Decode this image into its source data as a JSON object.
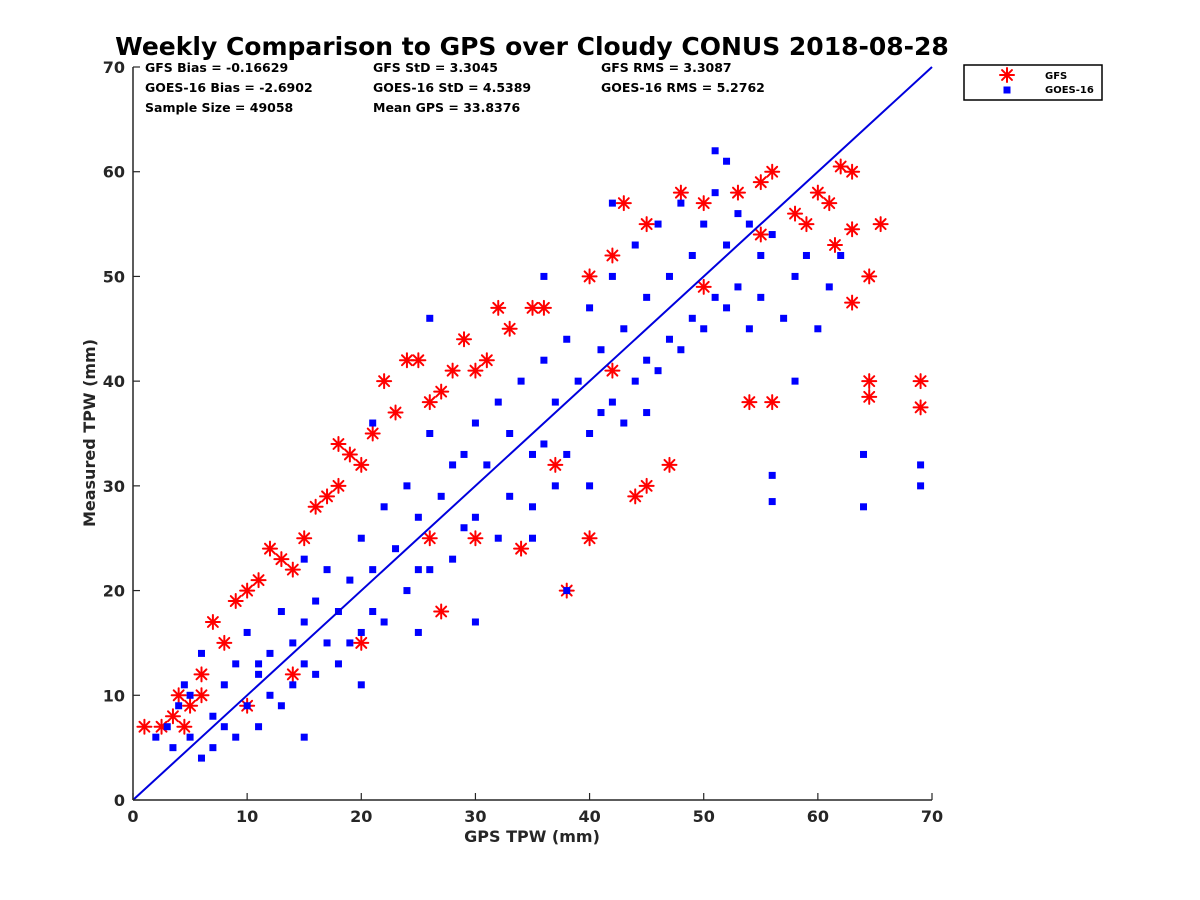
{
  "chart_data": {
    "type": "scatter",
    "title": "Weekly Comparison to GPS over Cloudy CONUS 2018-08-28",
    "xlabel": "GPS TPW (mm)",
    "ylabel": "Measured TPW (mm)",
    "xlim": [
      0,
      70
    ],
    "ylim": [
      0,
      70
    ],
    "xticks": [
      "0",
      "10",
      "20",
      "30",
      "40",
      "50",
      "60",
      "70"
    ],
    "yticks": [
      "0",
      "10",
      "20",
      "30",
      "40",
      "50",
      "60",
      "70"
    ],
    "grid": false,
    "legend_position": "top-right, outside plot",
    "stats": [
      [
        "GFS Bias = -0.16629",
        "GFS StD = 3.3045",
        "GFS RMS = 3.3087"
      ],
      [
        "GOES-16 Bias = -2.6902",
        "GOES-16 StD = 4.5389",
        "GOES-16 RMS = 5.2762"
      ],
      [
        "Sample Size = 49058",
        "Mean GPS = 33.8376",
        ""
      ]
    ],
    "reference_line": {
      "type": "one-to-one",
      "from": [
        0,
        0
      ],
      "to": [
        70,
        70
      ],
      "color": "#0000dd"
    },
    "series": [
      {
        "name": "GOES-16",
        "marker": "square",
        "color": "#0000ff",
        "points": [
          [
            2,
            6
          ],
          [
            3,
            7
          ],
          [
            3.5,
            5
          ],
          [
            4,
            9
          ],
          [
            4.5,
            11
          ],
          [
            5,
            6
          ],
          [
            5,
            10
          ],
          [
            6,
            4
          ],
          [
            6,
            14
          ],
          [
            7,
            8
          ],
          [
            7,
            5
          ],
          [
            8,
            7
          ],
          [
            8,
            11
          ],
          [
            9,
            6
          ],
          [
            9,
            13
          ],
          [
            10,
            9
          ],
          [
            10,
            16
          ],
          [
            11,
            12
          ],
          [
            11,
            7
          ],
          [
            12,
            14
          ],
          [
            12,
            10
          ],
          [
            13,
            18
          ],
          [
            13,
            9
          ],
          [
            14,
            15
          ],
          [
            14,
            11
          ],
          [
            15,
            17
          ],
          [
            15,
            13
          ],
          [
            16,
            19
          ],
          [
            16,
            12
          ],
          [
            17,
            22
          ],
          [
            17,
            15
          ],
          [
            18,
            18
          ],
          [
            18,
            13
          ],
          [
            19,
            21
          ],
          [
            19,
            15
          ],
          [
            20,
            25
          ],
          [
            20,
            16
          ],
          [
            21,
            22
          ],
          [
            21,
            18
          ],
          [
            22,
            28
          ],
          [
            22,
            17
          ],
          [
            23,
            24
          ],
          [
            24,
            30
          ],
          [
            24,
            20
          ],
          [
            25,
            27
          ],
          [
            25,
            22
          ],
          [
            26,
            35
          ],
          [
            26,
            22
          ],
          [
            27,
            29
          ],
          [
            28,
            32
          ],
          [
            28,
            23
          ],
          [
            29,
            33
          ],
          [
            29,
            26
          ],
          [
            30,
            36
          ],
          [
            30,
            27
          ],
          [
            31,
            32
          ],
          [
            32,
            38
          ],
          [
            32,
            25
          ],
          [
            33,
            35
          ],
          [
            33,
            29
          ],
          [
            34,
            40
          ],
          [
            35,
            33
          ],
          [
            35,
            28
          ],
          [
            36,
            42
          ],
          [
            36,
            34
          ],
          [
            37,
            38
          ],
          [
            37,
            30
          ],
          [
            38,
            44
          ],
          [
            38,
            33
          ],
          [
            39,
            40
          ],
          [
            40,
            47
          ],
          [
            40,
            35
          ],
          [
            41,
            43
          ],
          [
            41,
            37
          ],
          [
            42,
            50
          ],
          [
            42,
            38
          ],
          [
            43,
            45
          ],
          [
            43,
            36
          ],
          [
            44,
            53
          ],
          [
            44,
            40
          ],
          [
            45,
            48
          ],
          [
            45,
            42
          ],
          [
            46,
            55
          ],
          [
            46,
            41
          ],
          [
            47,
            50
          ],
          [
            47,
            44
          ],
          [
            48,
            57
          ],
          [
            48,
            43
          ],
          [
            49,
            52
          ],
          [
            49,
            46
          ],
          [
            50,
            55
          ],
          [
            50,
            45
          ],
          [
            51,
            58
          ],
          [
            51,
            48
          ],
          [
            52,
            53
          ],
          [
            52,
            47
          ],
          [
            53,
            56
          ],
          [
            53,
            49
          ],
          [
            54,
            55
          ],
          [
            54,
            45
          ],
          [
            55,
            52
          ],
          [
            55,
            48
          ],
          [
            56,
            54
          ],
          [
            56,
            31
          ],
          [
            56,
            28.5
          ],
          [
            57,
            46
          ],
          [
            58,
            50
          ],
          [
            58,
            40
          ],
          [
            59,
            52
          ],
          [
            60,
            45
          ],
          [
            61,
            49
          ],
          [
            62,
            52
          ],
          [
            64,
            33
          ],
          [
            64,
            28
          ],
          [
            69,
            32
          ],
          [
            69,
            30
          ],
          [
            51,
            62
          ],
          [
            52,
            61
          ],
          [
            42,
            57
          ],
          [
            36,
            50
          ],
          [
            26,
            46
          ],
          [
            21,
            36
          ],
          [
            15,
            23
          ],
          [
            11,
            13
          ],
          [
            45,
            37
          ],
          [
            40,
            30
          ],
          [
            35,
            25
          ],
          [
            38,
            20
          ],
          [
            30,
            17
          ],
          [
            25,
            16
          ],
          [
            20,
            11
          ],
          [
            15,
            6
          ]
        ]
      },
      {
        "name": "GFS",
        "marker": "asterisk",
        "color": "#ff0000",
        "points": [
          [
            1,
            7
          ],
          [
            2.5,
            7
          ],
          [
            3.5,
            8
          ],
          [
            4,
            10
          ],
          [
            4.5,
            7
          ],
          [
            5,
            9
          ],
          [
            6,
            12
          ],
          [
            7,
            17
          ],
          [
            8,
            15
          ],
          [
            9,
            19
          ],
          [
            10,
            20
          ],
          [
            11,
            21
          ],
          [
            12,
            24
          ],
          [
            13,
            23
          ],
          [
            14,
            22
          ],
          [
            15,
            25
          ],
          [
            16,
            28
          ],
          [
            17,
            29
          ],
          [
            18,
            34
          ],
          [
            18,
            30
          ],
          [
            19,
            33
          ],
          [
            20,
            32
          ],
          [
            21,
            35
          ],
          [
            22,
            40
          ],
          [
            23,
            37
          ],
          [
            24,
            42
          ],
          [
            25,
            42
          ],
          [
            26,
            38
          ],
          [
            27,
            39
          ],
          [
            28,
            41
          ],
          [
            29,
            44
          ],
          [
            30,
            41
          ],
          [
            31,
            42
          ],
          [
            32,
            47
          ],
          [
            33,
            45
          ],
          [
            35,
            47
          ],
          [
            36,
            47
          ],
          [
            38,
            20
          ],
          [
            40,
            50
          ],
          [
            42,
            52
          ],
          [
            43,
            57
          ],
          [
            45,
            55
          ],
          [
            48,
            58
          ],
          [
            50,
            57
          ],
          [
            53,
            58
          ],
          [
            55,
            59
          ],
          [
            56,
            60
          ],
          [
            58,
            56
          ],
          [
            59,
            55
          ],
          [
            60,
            58
          ],
          [
            61,
            57
          ],
          [
            61.5,
            53
          ],
          [
            62,
            60.5
          ],
          [
            63,
            60
          ],
          [
            63,
            54.5
          ],
          [
            63,
            47.5
          ],
          [
            64.5,
            50
          ],
          [
            64.5,
            40
          ],
          [
            64.5,
            38.5
          ],
          [
            65.5,
            55
          ],
          [
            69,
            40
          ],
          [
            69,
            37.5
          ],
          [
            56,
            38
          ],
          [
            54,
            38
          ],
          [
            47,
            32
          ],
          [
            45,
            30
          ],
          [
            44,
            29
          ],
          [
            40,
            25
          ],
          [
            34,
            24
          ],
          [
            27,
            18
          ],
          [
            20,
            15
          ],
          [
            14,
            12
          ],
          [
            10,
            9
          ],
          [
            6,
            10
          ],
          [
            30,
            25
          ],
          [
            37,
            32
          ],
          [
            42,
            41
          ],
          [
            50,
            49
          ],
          [
            55,
            54
          ],
          [
            26,
            25
          ]
        ]
      }
    ]
  }
}
